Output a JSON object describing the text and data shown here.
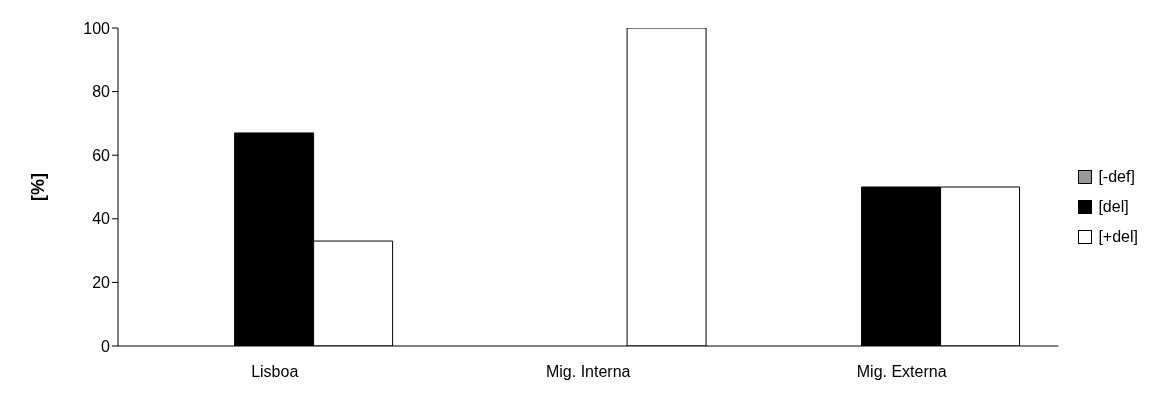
{
  "chart_data": {
    "type": "bar",
    "ylabel": "[%]",
    "categories": [
      "Lisboa",
      "Mig. Interna",
      "Mig. Externa"
    ],
    "series": [
      {
        "name": "[-def]",
        "color": "#999999",
        "values": [
          0,
          0,
          0
        ]
      },
      {
        "name": "[del]",
        "color": "#000000",
        "values": [
          67,
          0,
          50
        ]
      },
      {
        "name": "[+del]",
        "color": "#ffffff",
        "values": [
          33,
          100,
          50
        ]
      }
    ],
    "ylim": [
      0,
      100
    ],
    "yticks": [
      0,
      20,
      40,
      60,
      80,
      100
    ],
    "grid": false,
    "legend": "right"
  }
}
